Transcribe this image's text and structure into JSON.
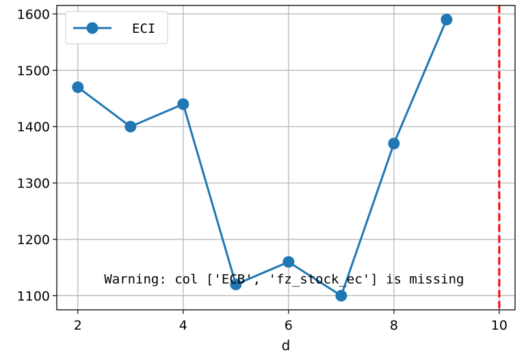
{
  "chart_data": {
    "type": "line",
    "title": "",
    "xlabel": "d",
    "ylabel": "",
    "xlim": [
      1.6,
      10.3
    ],
    "ylim": [
      1075,
      1615
    ],
    "xticks": [
      2,
      4,
      6,
      8,
      10
    ],
    "yticks": [
      1100,
      1200,
      1300,
      1400,
      1500,
      1600
    ],
    "xtick_labels": [
      "2",
      "4",
      "6",
      "8",
      "10"
    ],
    "ytick_labels": [
      "1100",
      "1200",
      "1300",
      "1400",
      "1500",
      "1600"
    ],
    "grid": true,
    "legend_position": "top-left",
    "series": [
      {
        "name": "ECI",
        "color": "#1f77b4",
        "marker": "circle",
        "x": [
          2,
          3,
          4,
          5,
          6,
          7,
          8,
          9
        ],
        "y": [
          1470,
          1400,
          1440,
          1120,
          1160,
          1100,
          1370,
          1590
        ]
      }
    ],
    "vertical_lines": [
      {
        "x": 10,
        "color": "#ff0000",
        "style": "dashed"
      }
    ],
    "annotations": [
      {
        "text": "Warning: col ['ECB', 'fz_stock_ec'] is missing",
        "x": 2.5,
        "y": 1130
      }
    ]
  }
}
